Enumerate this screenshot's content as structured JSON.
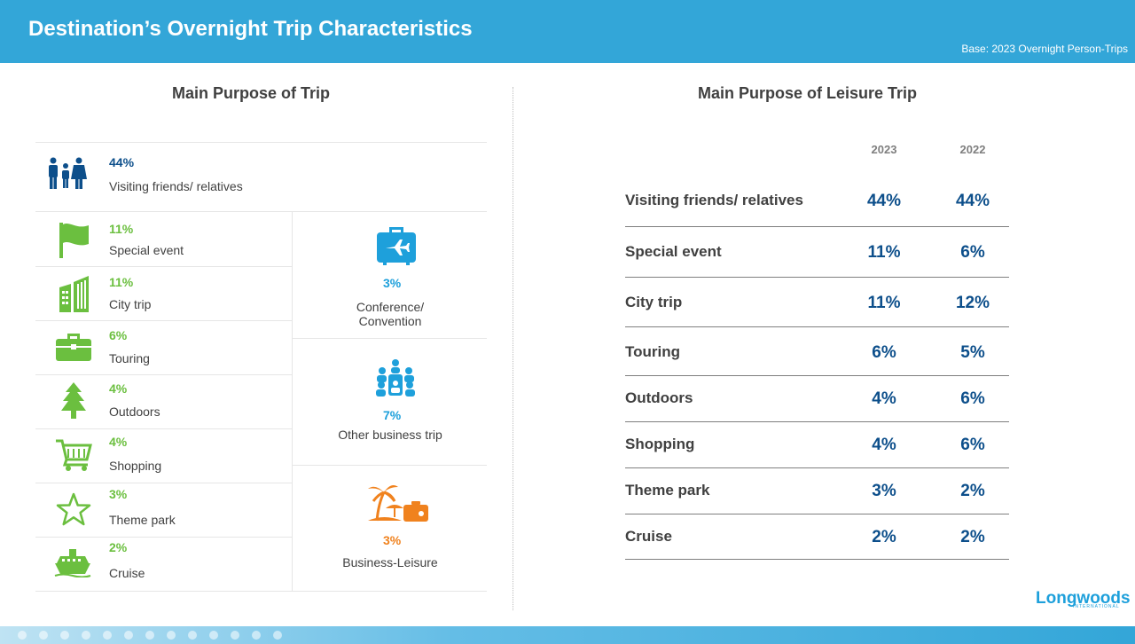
{
  "header": {
    "title": "Destination’s Overnight Trip Characteristics",
    "base": "Base: 2023 Overnight Person-Trips"
  },
  "left": {
    "title": "Main Purpose of Trip",
    "vfr": {
      "pct": "44%",
      "label": "Visiting friends/ relatives"
    },
    "leisure_items": [
      {
        "pct": "11%",
        "label": "Special event",
        "icon": "flag-icon"
      },
      {
        "pct": "11%",
        "label": "City trip",
        "icon": "building-icon"
      },
      {
        "pct": "6%",
        "label": "Touring",
        "icon": "briefcase-icon"
      },
      {
        "pct": "4%",
        "label": "Outdoors",
        "icon": "tree-icon"
      },
      {
        "pct": "4%",
        "label": "Shopping",
        "icon": "cart-icon"
      },
      {
        "pct": "3%",
        "label": "Theme park",
        "icon": "star-icon"
      },
      {
        "pct": "2%",
        "label": "Cruise",
        "icon": "ship-icon"
      }
    ],
    "business_items": [
      {
        "pct": "3%",
        "label1": "Conference/",
        "label2": "Convention",
        "icon": "luggage-plane-icon"
      },
      {
        "pct": "7%",
        "label": "Other business trip",
        "icon": "meeting-icon"
      },
      {
        "pct": "3%",
        "label": "Business-Leisure",
        "icon": "beach-icon"
      }
    ]
  },
  "right": {
    "title": "Main Purpose of Leisure Trip",
    "years": [
      "2023",
      "2022"
    ],
    "rows": [
      {
        "label": "Visiting friends/ relatives",
        "v2023": "44%",
        "v2022": "44%"
      },
      {
        "label": "Special event",
        "v2023": "11%",
        "v2022": "6%"
      },
      {
        "label": "City trip",
        "v2023": "11%",
        "v2022": "12%"
      },
      {
        "label": "Touring",
        "v2023": "6%",
        "v2022": "5%"
      },
      {
        "label": "Outdoors",
        "v2023": "4%",
        "v2022": "6%"
      },
      {
        "label": "Shopping",
        "v2023": "4%",
        "v2022": "6%"
      },
      {
        "label": "Theme park",
        "v2023": "3%",
        "v2022": "2%"
      },
      {
        "label": "Cruise",
        "v2023": "2%",
        "v2022": "2%"
      }
    ]
  },
  "logo": {
    "name": "Longwoods",
    "sub": "INTERNATIONAL"
  },
  "colors": {
    "header": "#33a6d8",
    "green": "#6bbf3f",
    "navy": "#0d4f8b",
    "lightblue": "#1ea0db",
    "orange": "#f0821e"
  }
}
